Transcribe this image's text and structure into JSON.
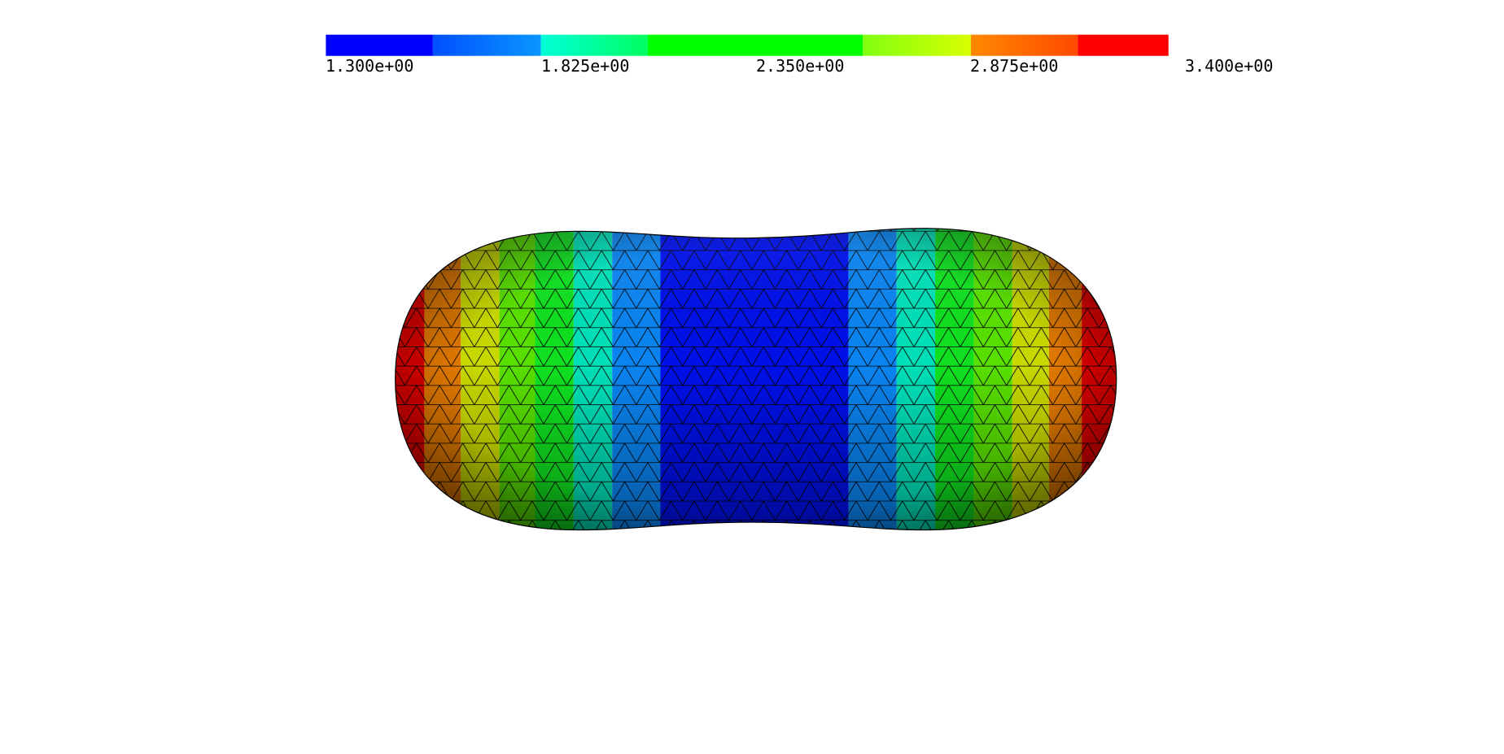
{
  "colorbar": {
    "labels": [
      "1.300e+00",
      "1.825e+00",
      "2.350e+00",
      "2.875e+00",
      "3.400e+00"
    ]
  }
}
